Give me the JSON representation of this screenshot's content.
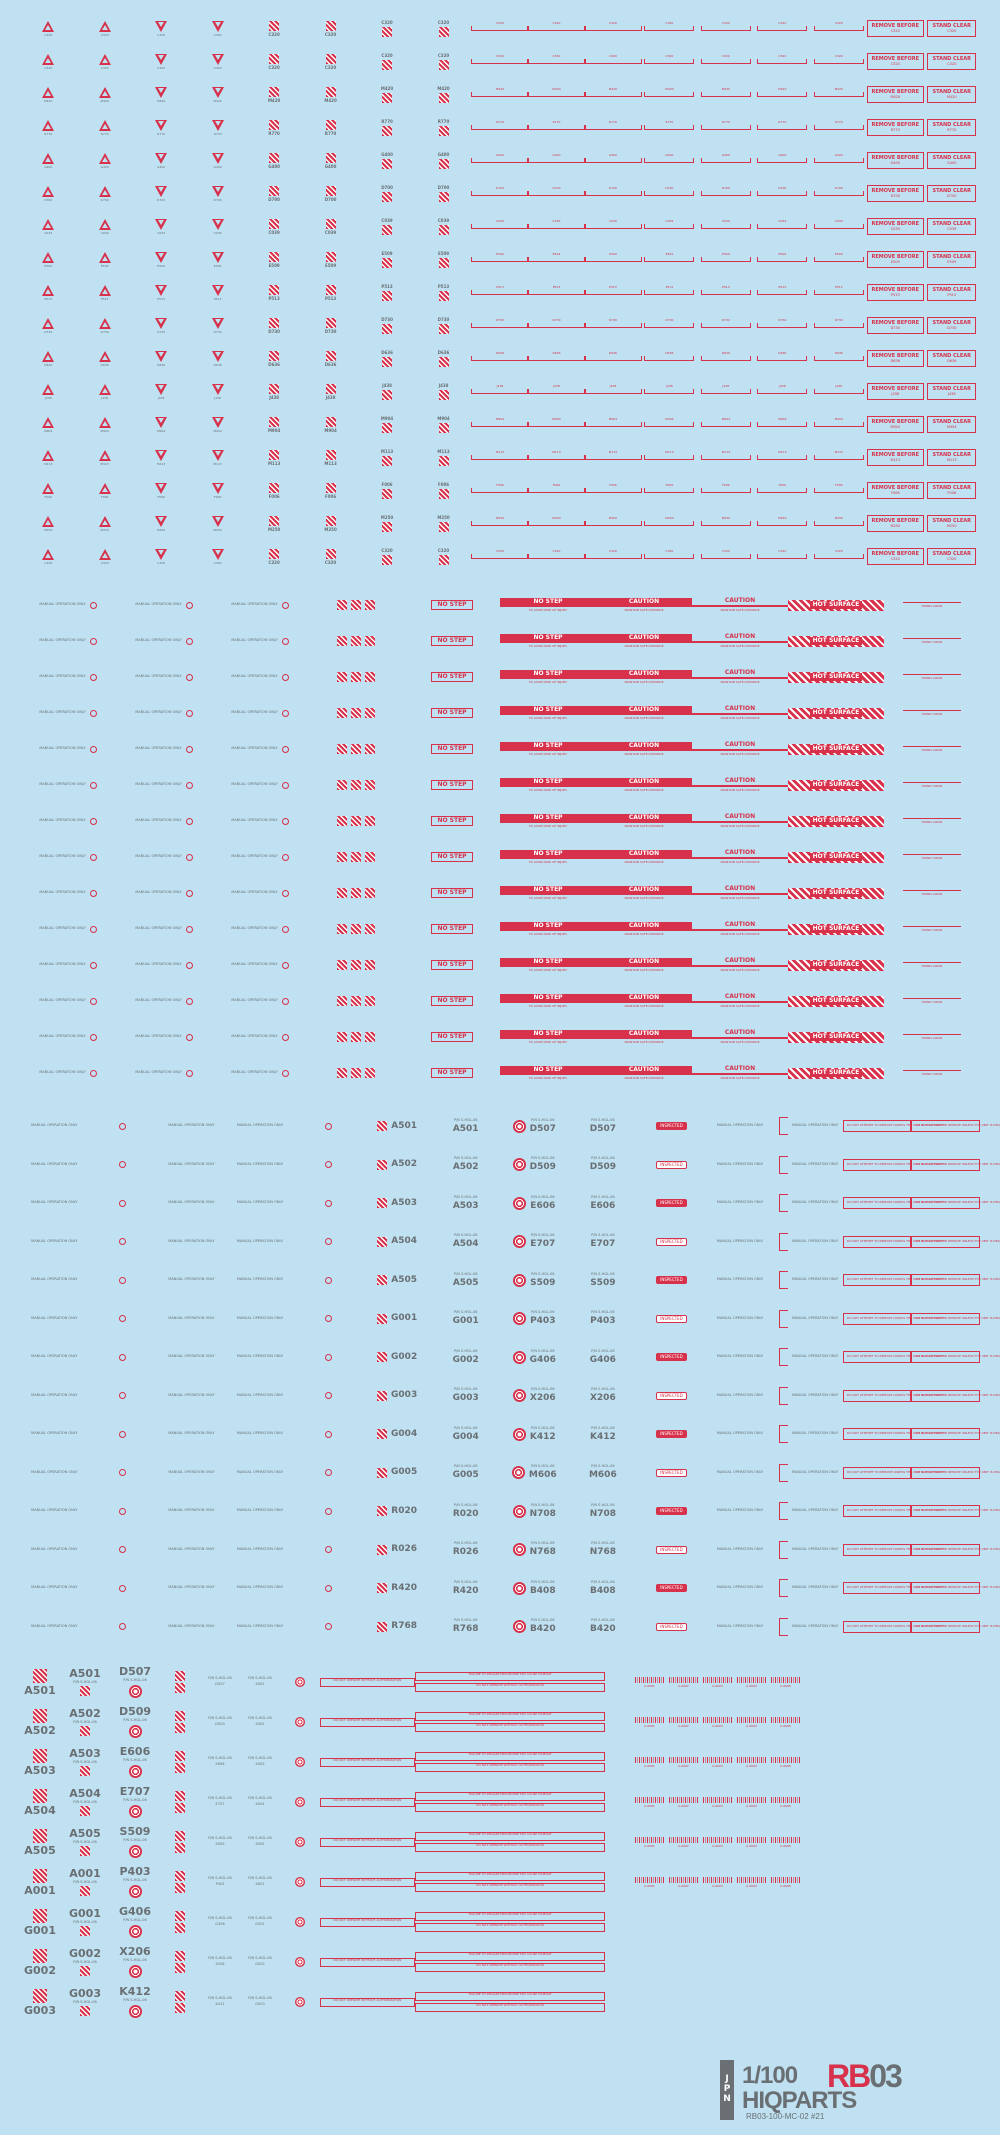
{
  "palette": {
    "background": "#bfe1f1",
    "red": "#d7314b",
    "grey": "#6a6f74"
  },
  "section_a": {
    "codes_col1": [
      "C320",
      "C320",
      "M420",
      "R770",
      "G400",
      "D700",
      "C039",
      "E509",
      "P513",
      "D730",
      "D636",
      "J438",
      "M904",
      "M113",
      "F006",
      "M250"
    ],
    "row_count": 17,
    "sign_a": "STAND CLEAR",
    "sign_b": "REMOVE BEFORE"
  },
  "section_b": {
    "row_count": 14,
    "no_step": "NO STEP",
    "no_step_sub": "TO AVOID RISK OF INJURY",
    "caution": "CAUTION",
    "caution_sub": "MAINTAIN SAFE DISTANCE",
    "hot_surface": "HOT SURFACE",
    "stand_clear": "STAND CLEAR",
    "manual": "MANUAL OPERATION ONLY"
  },
  "section_c": {
    "labels": [
      [
        "A501",
        "D507"
      ],
      [
        "A502",
        "D509"
      ],
      [
        "A503",
        "E606"
      ],
      [
        "A504",
        "E707"
      ],
      [
        "A505",
        "S509"
      ],
      [
        "G001",
        "P403"
      ],
      [
        "G002",
        "G406"
      ],
      [
        "G003",
        "X206"
      ],
      [
        "G004",
        "K412"
      ],
      [
        "G005",
        "M606"
      ],
      [
        "R020",
        "N708"
      ],
      [
        "R026",
        "N768"
      ],
      [
        "R420",
        "B408"
      ],
      [
        "R768",
        "B420"
      ]
    ],
    "pn_prefix": "P/N S-HGL-06",
    "inspected": "INSPECTED",
    "manual": "MANUAL OPERATION ONLY",
    "warning_box": "DO NOT ATTEMPT TO REMOVE UNLESS THE UNIT IS DEACTIVATED"
  },
  "section_d": {
    "labels": [
      [
        "A501",
        "D507"
      ],
      [
        "A502",
        "D509"
      ],
      [
        "A503",
        "E606"
      ],
      [
        "A504",
        "E707"
      ],
      [
        "A505",
        "S509"
      ],
      [
        "A001",
        "P403"
      ],
      [
        "G001",
        "G406"
      ],
      [
        "G002",
        "X206"
      ],
      [
        "G003",
        "K412"
      ]
    ],
    "pn_prefix": "P/N S-HGL-06",
    "frame_text_1": "FAILURE TO REALIZE PROCEDURE MAY CAUSE DAMAGE",
    "frame_text_2": "DO NOT OPERATE WITHOUT AUTHORIZATION",
    "barcode_codes": [
      "A-0001",
      "A-0002",
      "A-0003",
      "A-0004",
      "A-0005"
    ]
  },
  "logo": {
    "jpn": [
      "J",
      "P",
      "N"
    ],
    "scale": "1/100",
    "rb": "RB",
    "rb_num": "03",
    "brand": "HIQPARTS",
    "catalog": "RB03-100-MC-02 #21"
  }
}
